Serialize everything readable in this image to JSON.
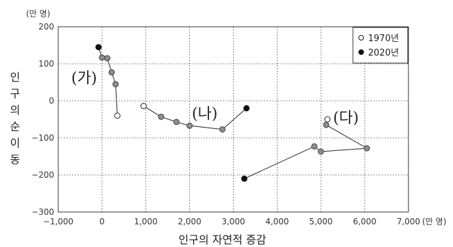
{
  "chart_data": {
    "type": "scatter",
    "xlabel": "인구의 자연적 증감",
    "ylabel": "인구의 순 이동",
    "x_unit": "(만 명)",
    "y_unit": "(만 명)",
    "xlim": [
      -1000,
      7000
    ],
    "ylim": [
      -300,
      200
    ],
    "x_ticks": [
      "−1,000",
      "0",
      "1,000",
      "2,000",
      "3,000",
      "4,000",
      "5,000",
      "6,000",
      "7,000"
    ],
    "y_ticks": [
      "200",
      "100",
      "0",
      "−100",
      "−200",
      "−300"
    ],
    "grid": true,
    "legend": {
      "position": "top-right",
      "items": [
        {
          "marker": "open-circle",
          "label": "1970년"
        },
        {
          "marker": "filled-circle",
          "label": "2020년"
        }
      ]
    },
    "series": [
      {
        "name": "(가)",
        "points": [
          {
            "x": 350,
            "y": -40,
            "kind": "1970"
          },
          {
            "x": 310,
            "y": 45,
            "kind": "mid"
          },
          {
            "x": 220,
            "y": 77,
            "kind": "mid"
          },
          {
            "x": 120,
            "y": 115,
            "kind": "mid"
          },
          {
            "x": 0,
            "y": 117,
            "kind": "mid"
          },
          {
            "x": -80,
            "y": 145,
            "kind": "2020"
          }
        ]
      },
      {
        "name": "(나)",
        "points": [
          {
            "x": 950,
            "y": -14,
            "kind": "1970"
          },
          {
            "x": 1350,
            "y": -43,
            "kind": "mid"
          },
          {
            "x": 1700,
            "y": -57,
            "kind": "mid"
          },
          {
            "x": 2000,
            "y": -67,
            "kind": "mid"
          },
          {
            "x": 2750,
            "y": -77,
            "kind": "mid"
          },
          {
            "x": 3300,
            "y": -20,
            "kind": "2020"
          }
        ]
      },
      {
        "name": "(다)",
        "points": [
          {
            "x": 5150,
            "y": -50,
            "kind": "1970"
          },
          {
            "x": 5120,
            "y": -65,
            "kind": "mid"
          },
          {
            "x": 6050,
            "y": -128,
            "kind": "mid"
          },
          {
            "x": 5000,
            "y": -137,
            "kind": "mid"
          },
          {
            "x": 4850,
            "y": -123,
            "kind": "mid"
          },
          {
            "x": 3250,
            "y": -210,
            "kind": "2020"
          }
        ]
      }
    ]
  }
}
